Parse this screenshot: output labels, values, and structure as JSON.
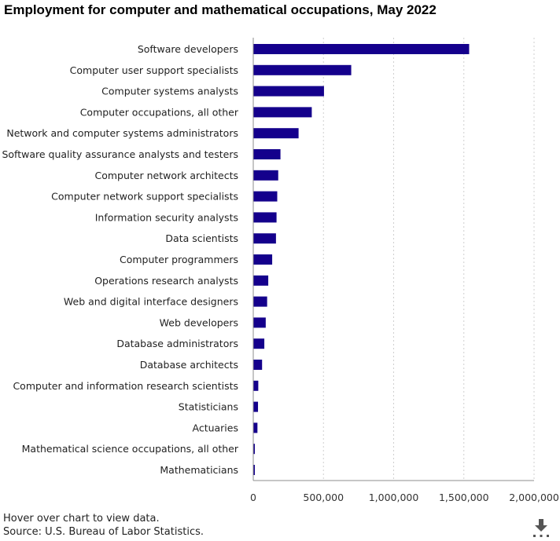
{
  "chart_data": {
    "type": "bar",
    "orientation": "horizontal",
    "title": "Employment for computer and mathematical occupations, May 2022",
    "categories": [
      "Software developers",
      "Computer user support specialists",
      "Computer systems analysts",
      "Computer occupations, all other",
      "Network and computer systems administrators",
      "Software quality assurance analysts and testers",
      "Computer network architects",
      "Computer network support specialists",
      "Information security analysts",
      "Data scientists",
      "Computer programmers",
      "Operations research analysts",
      "Web and digital interface designers",
      "Web developers",
      "Database administrators",
      "Database architects",
      "Computer and information research scientists",
      "Statisticians",
      "Actuaries",
      "Mathematical science occupations, all other",
      "Mathematicians"
    ],
    "values": [
      1535000,
      695000,
      501000,
      414000,
      320000,
      191000,
      175000,
      168000,
      163000,
      159000,
      132000,
      104000,
      96000,
      86000,
      76000,
      60000,
      33000,
      31000,
      27000,
      4000,
      3000
    ],
    "xticks": [
      "0",
      "500,000",
      "1,000,000",
      "1,500,000",
      "2,000,000"
    ],
    "xlim": [
      0,
      2000000
    ],
    "grid": "vertical dotted",
    "bar_color": "#14008c",
    "xlabel": "",
    "ylabel": ""
  },
  "footer": {
    "note": "Hover over chart to view data.",
    "source": "Source: U.S. Bureau of Labor Statistics."
  },
  "download": {
    "icon": "download-arrow-icon"
  }
}
